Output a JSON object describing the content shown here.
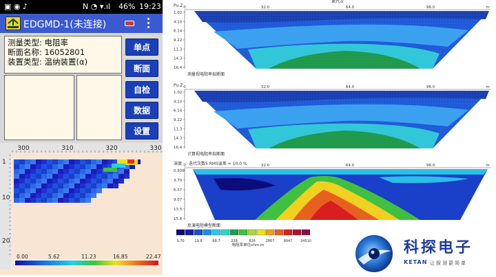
{
  "status": {
    "time": "19:23",
    "battery": "46%"
  },
  "app": {
    "title": "EDGMD-1(未连接)"
  },
  "info": {
    "line1": "测量类型: 电阻率",
    "line2": "断面名称: 16052801",
    "line3": "装置类型: 温纳装置(α)"
  },
  "buttons": [
    "单点",
    "断面",
    "自检",
    "数据",
    "设置"
  ],
  "phone_chart": {
    "x_ticks": [
      "300",
      "310",
      "320",
      "330"
    ],
    "y_ticks": [
      "1",
      "10",
      "20"
    ],
    "scale_labels": [
      "0.00",
      "5.62",
      "11.23",
      "16.85",
      "22.47"
    ]
  },
  "panel1": {
    "top_label": "第六次",
    "ylabel": "Pu.Z",
    "x_ticks": [
      "0",
      "32.0",
      "64.0",
      "96.0",
      "m"
    ],
    "y_ticks": [
      "1.02",
      "4.10",
      "6.14",
      "9.22",
      "11.3",
      "14.3",
      "16.4"
    ],
    "caption": "测量视电阻率拟断面"
  },
  "panel2": {
    "ylabel": "Pu.Z",
    "x_ticks": [
      "0",
      "32.0",
      "64.0",
      "96.0",
      "m"
    ],
    "y_ticks": [
      "1.02",
      "4.10",
      "6.14",
      "9.22",
      "11.3",
      "14.3",
      "16.4"
    ],
    "caption": "计算视电阻率拟断面"
  },
  "panel3": {
    "ylabel": "深度",
    "subtitle": "迭代次数5  RMS误差 = 10.0 %",
    "x_ticks": [
      "0",
      "32.0",
      "64.0",
      "96.0",
      "m"
    ],
    "y_ticks": [
      "0.500",
      "3.70",
      "6.37",
      "9.07",
      "13.5",
      "15.8"
    ],
    "caption": "反演电阻模型断面",
    "legend_values": [
      "5.70",
      "19.8",
      "68.7",
      "238",
      "826",
      "2867",
      "9947",
      "34510"
    ],
    "legend_title": "电阻率单位ohm.m"
  },
  "brand": {
    "name_cn": "科探电子",
    "name_en": "KETAN",
    "slogan": "让探测更简单"
  },
  "colors": {
    "appbar": "#3c5ad0",
    "button": "#1a3fb8",
    "brand": "#1e3d9a"
  },
  "legend_colors": [
    "#0a0a7a",
    "#1a1aa8",
    "#1a4fd6",
    "#1a8ee8",
    "#28c8f0",
    "#2dd6c0",
    "#1e9e4a",
    "#40c040",
    "#a8d83a",
    "#f0e020",
    "#f0a020",
    "#e86020",
    "#d82020",
    "#b01030",
    "#801040"
  ],
  "icons": {
    "logo": "edg-logo",
    "connection": "battery-icon",
    "menu": "overflow-menu-icon",
    "brand_logo": "globe-logo"
  }
}
